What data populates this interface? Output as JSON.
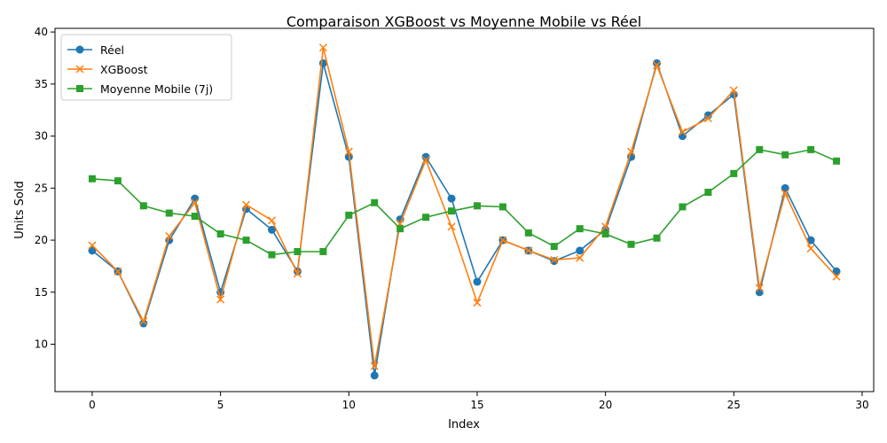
{
  "chart_data": {
    "type": "line",
    "title": "Comparaison XGBoost vs Moyenne Mobile vs Réel",
    "xlabel": "Index",
    "ylabel": "Units Sold",
    "xlim": [
      -1.45,
      30.45
    ],
    "ylim": [
      5.45,
      40.35
    ],
    "xticks": [
      0,
      5,
      10,
      15,
      20,
      25,
      30
    ],
    "yticks": [
      10,
      15,
      20,
      25,
      30,
      35,
      40
    ],
    "grid": false,
    "legend_position": "top-left",
    "x": [
      0,
      1,
      2,
      3,
      4,
      5,
      6,
      7,
      8,
      9,
      10,
      11,
      12,
      13,
      14,
      15,
      16,
      17,
      18,
      19,
      20,
      21,
      22,
      23,
      24,
      25,
      26,
      27,
      28,
      29
    ],
    "series": [
      {
        "name": "Réel",
        "color": "#1f77b4",
        "marker": "circle",
        "values": [
          19,
          17,
          12,
          20,
          24,
          15,
          23,
          21,
          17,
          37,
          28,
          7,
          22,
          28,
          24,
          16,
          20,
          19,
          18,
          19,
          21,
          28,
          37,
          30,
          32,
          34,
          15,
          25,
          20,
          17
        ]
      },
      {
        "name": "XGBoost",
        "color": "#ff7f0e",
        "marker": "x",
        "values": [
          19.5,
          17,
          12.2,
          20.4,
          23.6,
          14.3,
          23.4,
          21.9,
          16.8,
          38.5,
          28.5,
          7.9,
          21.6,
          27.7,
          21.3,
          14,
          20,
          19,
          18.1,
          18.3,
          21.3,
          28.5,
          36.8,
          30.4,
          31.7,
          34.4,
          15.4,
          24.5,
          19.2,
          16.5
        ]
      },
      {
        "name": "Moyenne Mobile (7j)",
        "color": "#2ca02c",
        "marker": "square",
        "values": [
          25.9,
          25.7,
          23.3,
          22.6,
          22.3,
          20.6,
          20,
          18.6,
          18.9,
          18.9,
          22.4,
          23.6,
          21.1,
          22.2,
          22.8,
          23.3,
          23.2,
          20.7,
          19.4,
          21.1,
          20.6,
          19.6,
          20.2,
          23.2,
          24.6,
          26.4,
          28.7,
          28.2,
          28.7,
          27.6
        ]
      }
    ]
  }
}
